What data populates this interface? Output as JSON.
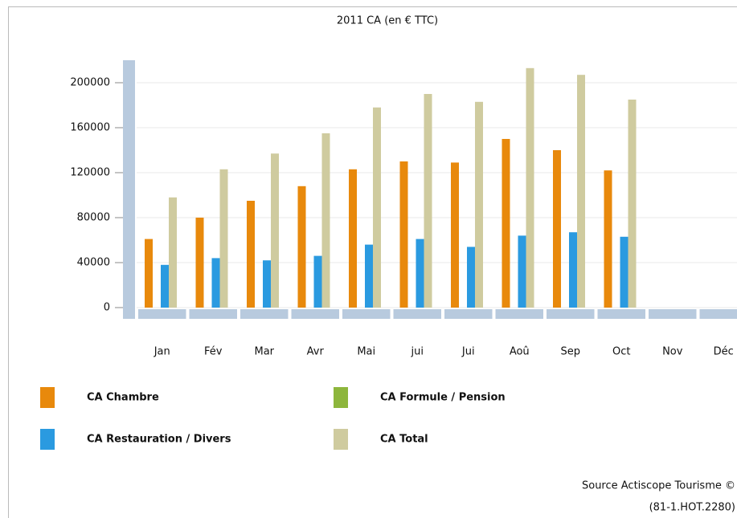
{
  "chart_data": {
    "type": "bar",
    "title": "2011 CA (en € TTC)",
    "categories": [
      "Jan",
      "Fév",
      "Mar",
      "Avr",
      "Mai",
      "jui",
      "Jui",
      "Aoû",
      "Sep",
      "Oct",
      "Nov",
      "Déc"
    ],
    "series": [
      {
        "name": "CA Chambre",
        "color": "#e8890c",
        "values": [
          61000,
          80000,
          95000,
          108000,
          123000,
          130000,
          129000,
          150000,
          140000,
          122000,
          null,
          null
        ]
      },
      {
        "name": "CA Formule / Pension",
        "color": "#8db63c",
        "values": [
          null,
          null,
          null,
          null,
          null,
          null,
          null,
          null,
          null,
          null,
          null,
          null
        ]
      },
      {
        "name": "CA Restauration / Divers",
        "color": "#2a9ae0",
        "values": [
          38000,
          44000,
          42000,
          46000,
          56000,
          61000,
          54000,
          64000,
          67000,
          63000,
          null,
          null
        ]
      },
      {
        "name": "CA Total",
        "color": "#cfcb9f",
        "values": [
          98000,
          123000,
          137000,
          155000,
          178000,
          190000,
          183000,
          213000,
          207000,
          185000,
          null,
          null
        ]
      }
    ],
    "ylim": [
      0,
      220000
    ],
    "yticks": [
      0,
      40000,
      80000,
      120000,
      160000,
      200000
    ],
    "grid": true,
    "source": [
      "Source Actiscope Tourisme ©",
      "(81-1.HOT.2280)"
    ]
  }
}
